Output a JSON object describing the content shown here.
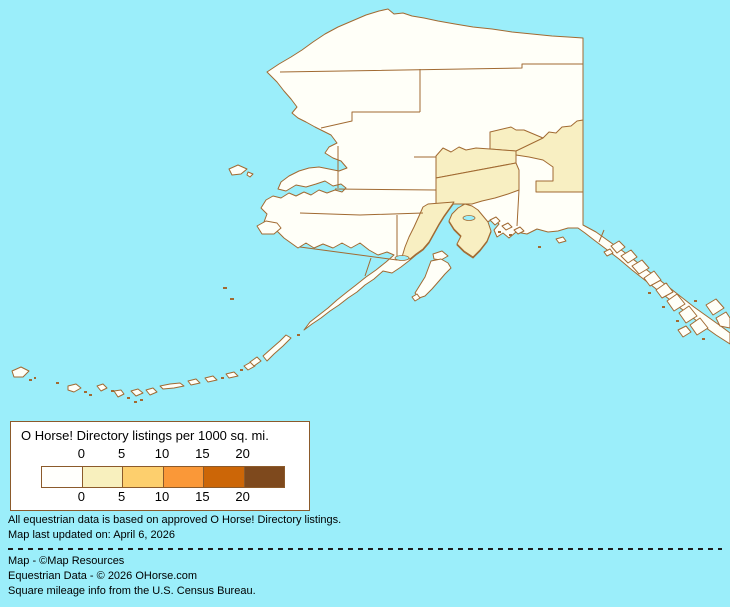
{
  "map": {
    "type": "choropleth",
    "area": "Alaska"
  },
  "legend": {
    "title": "O Horse! Directory listings per 1000 sq. mi.",
    "ticks": [
      "0",
      "5",
      "10",
      "15",
      "20"
    ],
    "ramp_colors": [
      "#FFFFFC",
      "#F8F0BE",
      "#FDCF6D",
      "#FA9838",
      "#CC6607",
      "#7E491D"
    ]
  },
  "colors": {
    "ocean": "#9BEEFA",
    "land": "#FFFFF8",
    "shaded": "#F8EFC2",
    "border": "#A16A32",
    "legendborder": "#8B5A2B",
    "legendbg": "#FFFFFF",
    "dash": "#1C1C1C",
    "text": "#000000"
  },
  "footer": {
    "line1": "All equestrian data is based on approved O Horse! Directory listings.",
    "line2": "Map last updated on: April 6, 2026",
    "credit1": "Map - ©Map Resources",
    "credit2": "Equestrian Data - © 2026 OHorse.com",
    "credit3": "Square mileage info from the U.S. Census Bureau."
  }
}
